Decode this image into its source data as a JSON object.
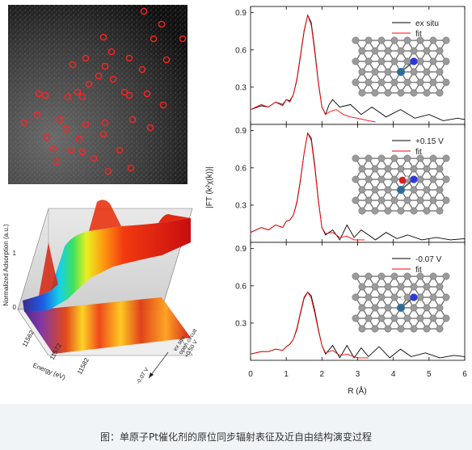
{
  "caption": "图：单原子Pt催化剂的原位同步辐射表征及近自由结构演变过程",
  "surface_plot": {
    "ylabel": "Normalized Adsorption (a.u.)",
    "y_ticks": [
      "0",
      "1"
    ],
    "xlabel": "Energy (eV)",
    "x_ticks": [
      "11562",
      "11572",
      "11582"
    ],
    "conditions": [
      "ex situ",
      "open circuit",
      "+0.50 V",
      "-0.07 V"
    ]
  },
  "chart_data": {
    "type": "line",
    "xlabel": "R (Å)",
    "ylabel": "|FT (k²χ(k))|",
    "xlim": [
      0,
      6
    ],
    "x_ticks": [
      "0",
      "1",
      "2",
      "3",
      "4",
      "5",
      "6"
    ],
    "ylim": [
      0,
      0.95
    ],
    "y_ticks": [
      "0.3",
      "0.6",
      "0.9"
    ],
    "panels": [
      {
        "label": "ex situ",
        "series": [
          {
            "name": "ex situ",
            "color": "#000000",
            "x": [
              0,
              0.3,
              0.5,
              0.7,
              0.9,
              1.0,
              1.1,
              1.2,
              1.3,
              1.4,
              1.5,
              1.6,
              1.7,
              1.8,
              1.9,
              2.0,
              2.1,
              2.2,
              2.3,
              2.5,
              2.8,
              3.1,
              3.4,
              3.8,
              4.2,
              4.6,
              5.0,
              5.4,
              5.8,
              6.0
            ],
            "y": [
              0.12,
              0.15,
              0.14,
              0.18,
              0.16,
              0.2,
              0.19,
              0.24,
              0.36,
              0.55,
              0.75,
              0.88,
              0.82,
              0.6,
              0.34,
              0.14,
              0.08,
              0.16,
              0.2,
              0.14,
              0.16,
              0.08,
              0.14,
              0.06,
              0.12,
              0.05,
              0.08,
              0.03,
              0.05,
              0.04
            ]
          },
          {
            "name": "fit",
            "color": "#ff0000",
            "x": [
              0,
              0.3,
              0.5,
              0.7,
              0.9,
              1.0,
              1.1,
              1.2,
              1.3,
              1.4,
              1.5,
              1.6,
              1.7,
              1.8,
              1.9,
              2.0,
              2.1,
              2.2,
              2.4,
              2.6,
              2.8,
              3.0,
              3.3,
              3.5
            ],
            "y": [
              0.12,
              0.16,
              0.14,
              0.18,
              0.15,
              0.2,
              0.18,
              0.24,
              0.37,
              0.56,
              0.76,
              0.88,
              0.8,
              0.58,
              0.33,
              0.14,
              0.08,
              0.1,
              0.12,
              0.08,
              0.06,
              0.05,
              0.03,
              0.02
            ]
          }
        ]
      },
      {
        "label": "+0.15 V",
        "series": [
          {
            "name": "+0.15 V",
            "color": "#000000",
            "x": [
              0,
              0.3,
              0.5,
              0.7,
              0.9,
              1.0,
              1.1,
              1.2,
              1.3,
              1.4,
              1.5,
              1.6,
              1.7,
              1.8,
              1.9,
              2.0,
              2.1,
              2.3,
              2.5,
              2.7,
              2.9,
              3.1,
              3.3,
              3.5,
              3.8,
              4.1,
              4.4,
              4.8,
              5.2,
              5.6,
              6.0
            ],
            "y": [
              0.08,
              0.12,
              0.1,
              0.14,
              0.12,
              0.17,
              0.18,
              0.22,
              0.32,
              0.5,
              0.72,
              0.88,
              0.84,
              0.62,
              0.34,
              0.12,
              0.06,
              0.1,
              0.02,
              0.14,
              0.04,
              0.1,
              0.06,
              0.02,
              0.08,
              0.03,
              0.06,
              0.02,
              0.04,
              0.02,
              0.03
            ]
          },
          {
            "name": "fit",
            "color": "#ff0000",
            "x": [
              0,
              0.3,
              0.5,
              0.7,
              0.9,
              1.0,
              1.1,
              1.2,
              1.3,
              1.4,
              1.5,
              1.6,
              1.7,
              1.8,
              1.9,
              2.0,
              2.1,
              2.3,
              2.5,
              2.7,
              2.9,
              3.2
            ],
            "y": [
              0.08,
              0.12,
              0.1,
              0.14,
              0.12,
              0.17,
              0.18,
              0.22,
              0.33,
              0.51,
              0.72,
              0.88,
              0.82,
              0.6,
              0.33,
              0.12,
              0.07,
              0.08,
              0.04,
              0.05,
              0.02,
              0.02
            ]
          }
        ]
      },
      {
        "label": "-0.07 V",
        "series": [
          {
            "name": "-0.07 V",
            "color": "#000000",
            "x": [
              0,
              0.3,
              0.5,
              0.7,
              0.9,
              1.0,
              1.1,
              1.2,
              1.3,
              1.4,
              1.5,
              1.6,
              1.7,
              1.8,
              1.9,
              2.0,
              2.1,
              2.3,
              2.5,
              2.7,
              2.9,
              3.1,
              3.3,
              3.6,
              3.9,
              4.2,
              4.5,
              4.9,
              5.3,
              5.7,
              6.0
            ],
            "y": [
              0.05,
              0.07,
              0.07,
              0.09,
              0.08,
              0.11,
              0.13,
              0.17,
              0.25,
              0.38,
              0.5,
              0.55,
              0.52,
              0.4,
              0.25,
              0.12,
              0.05,
              0.12,
              0.02,
              0.12,
              0.02,
              0.1,
              0.03,
              0.11,
              0.02,
              0.09,
              0.03,
              0.06,
              0.02,
              0.04,
              0.03
            ]
          },
          {
            "name": "fit",
            "color": "#ff0000",
            "x": [
              0,
              0.3,
              0.5,
              0.7,
              0.9,
              1.0,
              1.1,
              1.2,
              1.3,
              1.4,
              1.5,
              1.6,
              1.7,
              1.8,
              1.9,
              2.0,
              2.1,
              2.3,
              2.5,
              2.7,
              3.0,
              3.3
            ],
            "y": [
              0.05,
              0.07,
              0.07,
              0.09,
              0.08,
              0.11,
              0.13,
              0.17,
              0.26,
              0.39,
              0.51,
              0.55,
              0.5,
              0.38,
              0.24,
              0.12,
              0.06,
              0.08,
              0.04,
              0.05,
              0.02,
              0.02
            ]
          }
        ]
      }
    ]
  },
  "colors": {
    "data_line": "#000000",
    "fit_line": "#ff0000",
    "carbon_atom": "#9b9b9b",
    "pt_atom": "#2e6c96",
    "n_atom": "#2c3ad6",
    "o_atom": "#d42222",
    "stem_marker": "#ff2222"
  }
}
